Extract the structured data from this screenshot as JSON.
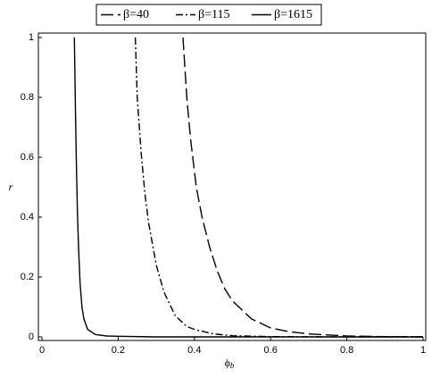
{
  "chart_data": {
    "type": "line",
    "x_label": "ϕ",
    "x_label_subscript": "b",
    "y_label": "r",
    "xlim": [
      0,
      1
    ],
    "ylim": [
      0,
      1
    ],
    "xticks": [
      0,
      0.2,
      0.4,
      0.6,
      0.8,
      1
    ],
    "yticks": [
      0,
      0.2,
      0.4,
      0.6,
      0.8,
      1
    ],
    "series": [
      {
        "name": "β=40",
        "color": "#000000",
        "dash": "dash",
        "x": [
          0.37,
          0.38,
          0.39,
          0.405,
          0.42,
          0.44,
          0.46,
          0.48,
          0.5,
          0.55,
          0.6,
          0.65,
          0.7,
          0.8,
          0.9,
          1
        ],
        "values": [
          1,
          0.8,
          0.66,
          0.5,
          0.4,
          0.3,
          0.22,
          0.16,
          0.12,
          0.06,
          0.03,
          0.017,
          0.01,
          0.003,
          0.001,
          0
        ]
      },
      {
        "name": "β=115",
        "color": "#000000",
        "dash": "dashdot",
        "x": [
          0.245,
          0.25,
          0.26,
          0.27,
          0.28,
          0.3,
          0.32,
          0.35,
          0.38,
          0.4,
          0.45,
          0.5,
          0.6,
          0.8,
          1
        ],
        "values": [
          1,
          0.8,
          0.62,
          0.48,
          0.38,
          0.24,
          0.15,
          0.07,
          0.035,
          0.025,
          0.01,
          0.004,
          0.001,
          0,
          0
        ]
      },
      {
        "name": "β=1615",
        "color": "#000000",
        "dash": "solid",
        "x": [
          0.085,
          0.088,
          0.09,
          0.093,
          0.096,
          0.1,
          0.105,
          0.11,
          0.12,
          0.14,
          0.17,
          0.2,
          0.3,
          0.5,
          1
        ],
        "values": [
          1,
          0.75,
          0.6,
          0.42,
          0.3,
          0.18,
          0.1,
          0.06,
          0.025,
          0.008,
          0.003,
          0.002,
          0,
          0,
          0
        ]
      }
    ]
  }
}
